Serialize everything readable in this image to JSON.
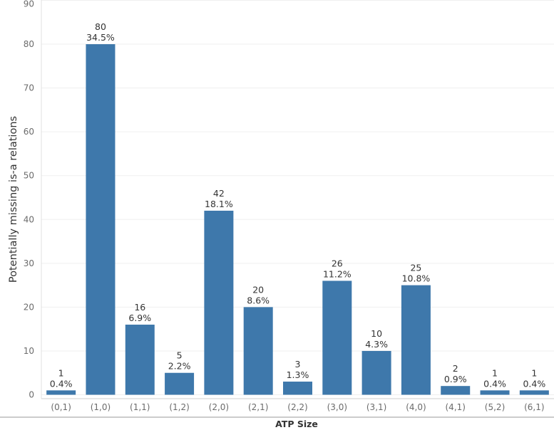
{
  "chart_data": {
    "type": "bar",
    "xlabel": "ATP Size",
    "ylabel": "Potentially missing is-a relations",
    "ylim": [
      0,
      90
    ],
    "yticks": [
      0,
      10,
      20,
      30,
      40,
      50,
      60,
      70,
      80,
      90
    ],
    "grid": true,
    "bar_color": "#3e78ab",
    "categories": [
      "(0,1)",
      "(1,0)",
      "(1,1)",
      "(1,2)",
      "(2,0)",
      "(2,1)",
      "(2,2)",
      "(3,0)",
      "(3,1)",
      "(4,0)",
      "(4,1)",
      "(5,2)",
      "(6,1)"
    ],
    "values": [
      1,
      80,
      16,
      5,
      42,
      20,
      3,
      26,
      10,
      25,
      2,
      1,
      1
    ],
    "percent_labels": [
      "0.4%",
      "34.5%",
      "6.9%",
      "2.2%",
      "18.1%",
      "8.6%",
      "1.3%",
      "11.2%",
      "4.3%",
      "10.8%",
      "0.9%",
      "0.4%",
      "0.4%"
    ]
  }
}
